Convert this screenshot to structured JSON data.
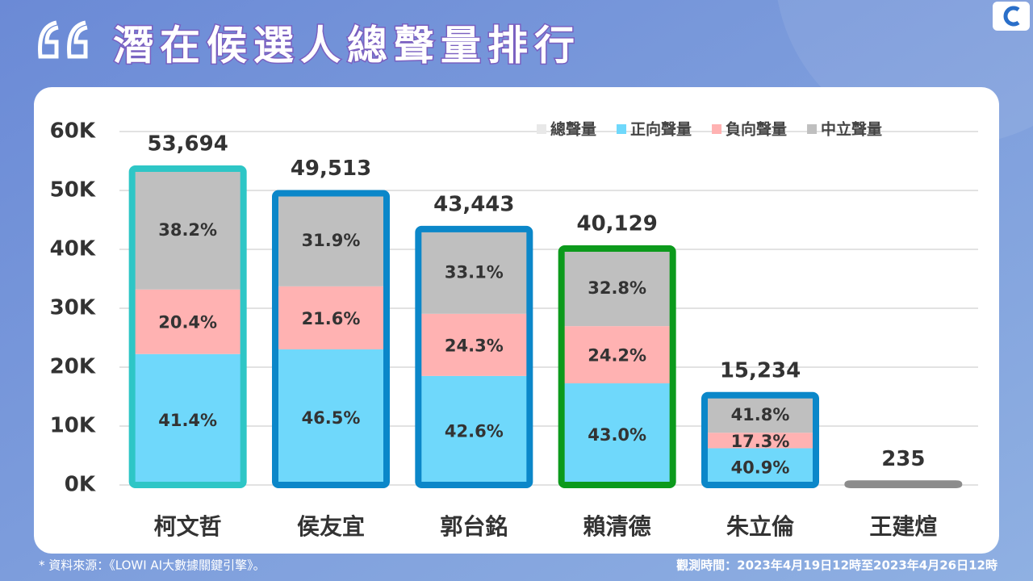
{
  "title": "潛在候選人總聲量排行",
  "footnote": "* 資料來源：《LOWI AI大數據關鍵引擎》。",
  "period": "觀測時間：2023年4月19日12時至2023年4月26日12時",
  "chart_data": {
    "type": "bar",
    "stacked": true,
    "categories": [
      "柯文哲",
      "侯友宜",
      "郭台銘",
      "賴清德",
      "朱立倫",
      "王建煊"
    ],
    "border_colors": [
      "#2ec6c6",
      "#0b87c9",
      "#0b87c9",
      "#0c9a1c",
      "#0b87c9",
      "#8c8c8c"
    ],
    "series": [
      {
        "name": "總聲量",
        "color": "#e8e8e8",
        "values": [
          53694,
          49513,
          43443,
          40129,
          15234,
          235
        ],
        "value_labels": [
          "53,694",
          "49,513",
          "43,443",
          "40,129",
          "15,234",
          "235"
        ]
      },
      {
        "name": "正向聲量",
        "color": "#6fd8fb",
        "values": [
          41.4,
          46.5,
          42.6,
          43.0,
          40.9,
          null
        ],
        "value_labels": [
          "41.4%",
          "46.5%",
          "42.6%",
          "43.0%",
          "40.9%",
          null
        ]
      },
      {
        "name": "負向聲量",
        "color": "#ffb2b2",
        "values": [
          20.4,
          21.6,
          24.3,
          24.2,
          17.3,
          null
        ],
        "value_labels": [
          "20.4%",
          "21.6%",
          "24.3%",
          "24.2%",
          "17.3%",
          null
        ]
      },
      {
        "name": "中立聲量",
        "color": "#bfbfbf",
        "values": [
          38.2,
          31.9,
          33.1,
          32.8,
          41.8,
          null
        ],
        "value_labels": [
          "38.2%",
          "31.9%",
          "33.1%",
          "32.8%",
          "41.8%",
          null
        ]
      }
    ],
    "ylim": [
      0,
      60000
    ],
    "yticks": [
      {
        "value": 0,
        "label": "0K"
      },
      {
        "value": 10000,
        "label": "10K"
      },
      {
        "value": 20000,
        "label": "20K"
      },
      {
        "value": 30000,
        "label": "30K"
      },
      {
        "value": 40000,
        "label": "40K"
      },
      {
        "value": 50000,
        "label": "50K"
      },
      {
        "value": 60000,
        "label": "60K"
      }
    ],
    "grid": true,
    "legend": "top-right"
  }
}
